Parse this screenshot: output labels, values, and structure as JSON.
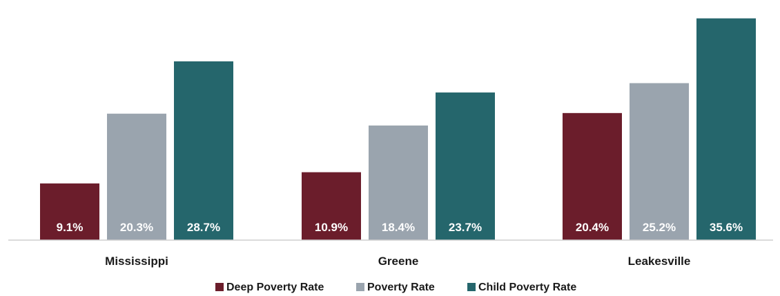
{
  "chart_data": {
    "type": "bar",
    "title": "",
    "xlabel": "",
    "ylabel": "",
    "categories": [
      "Mississippi",
      "Greene",
      "Leakesville"
    ],
    "series": [
      {
        "name": "Deep Poverty Rate",
        "color": "#6b1d2b",
        "values": [
          9.1,
          10.9,
          20.4
        ],
        "labels": [
          "9.1%",
          "10.9%",
          "20.4%"
        ]
      },
      {
        "name": "Poverty Rate",
        "color": "#9aa4ae",
        "values": [
          20.3,
          18.4,
          25.2
        ],
        "labels": [
          "20.3%",
          "18.4%",
          "25.2%"
        ]
      },
      {
        "name": "Child Poverty Rate",
        "color": "#25666c",
        "values": [
          28.7,
          23.7,
          35.6
        ],
        "labels": [
          "28.7%",
          "23.7%",
          "35.6%"
        ]
      }
    ],
    "ylim": [
      0,
      36
    ],
    "grid": false,
    "legend": "bottom"
  }
}
